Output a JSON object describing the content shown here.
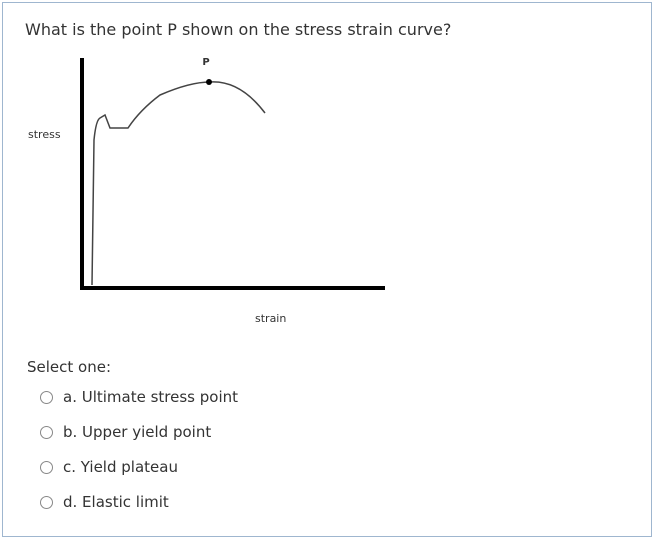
{
  "question": "What is the point P shown on the stress strain curve?",
  "figure": {
    "point_label": "P",
    "y_label": "stress",
    "x_label": "strain"
  },
  "prompt": "Select one:",
  "options": [
    "a. Ultimate stress point",
    "b. Upper yield point",
    "c. Yield plateau",
    "d. Elastic limit"
  ]
}
